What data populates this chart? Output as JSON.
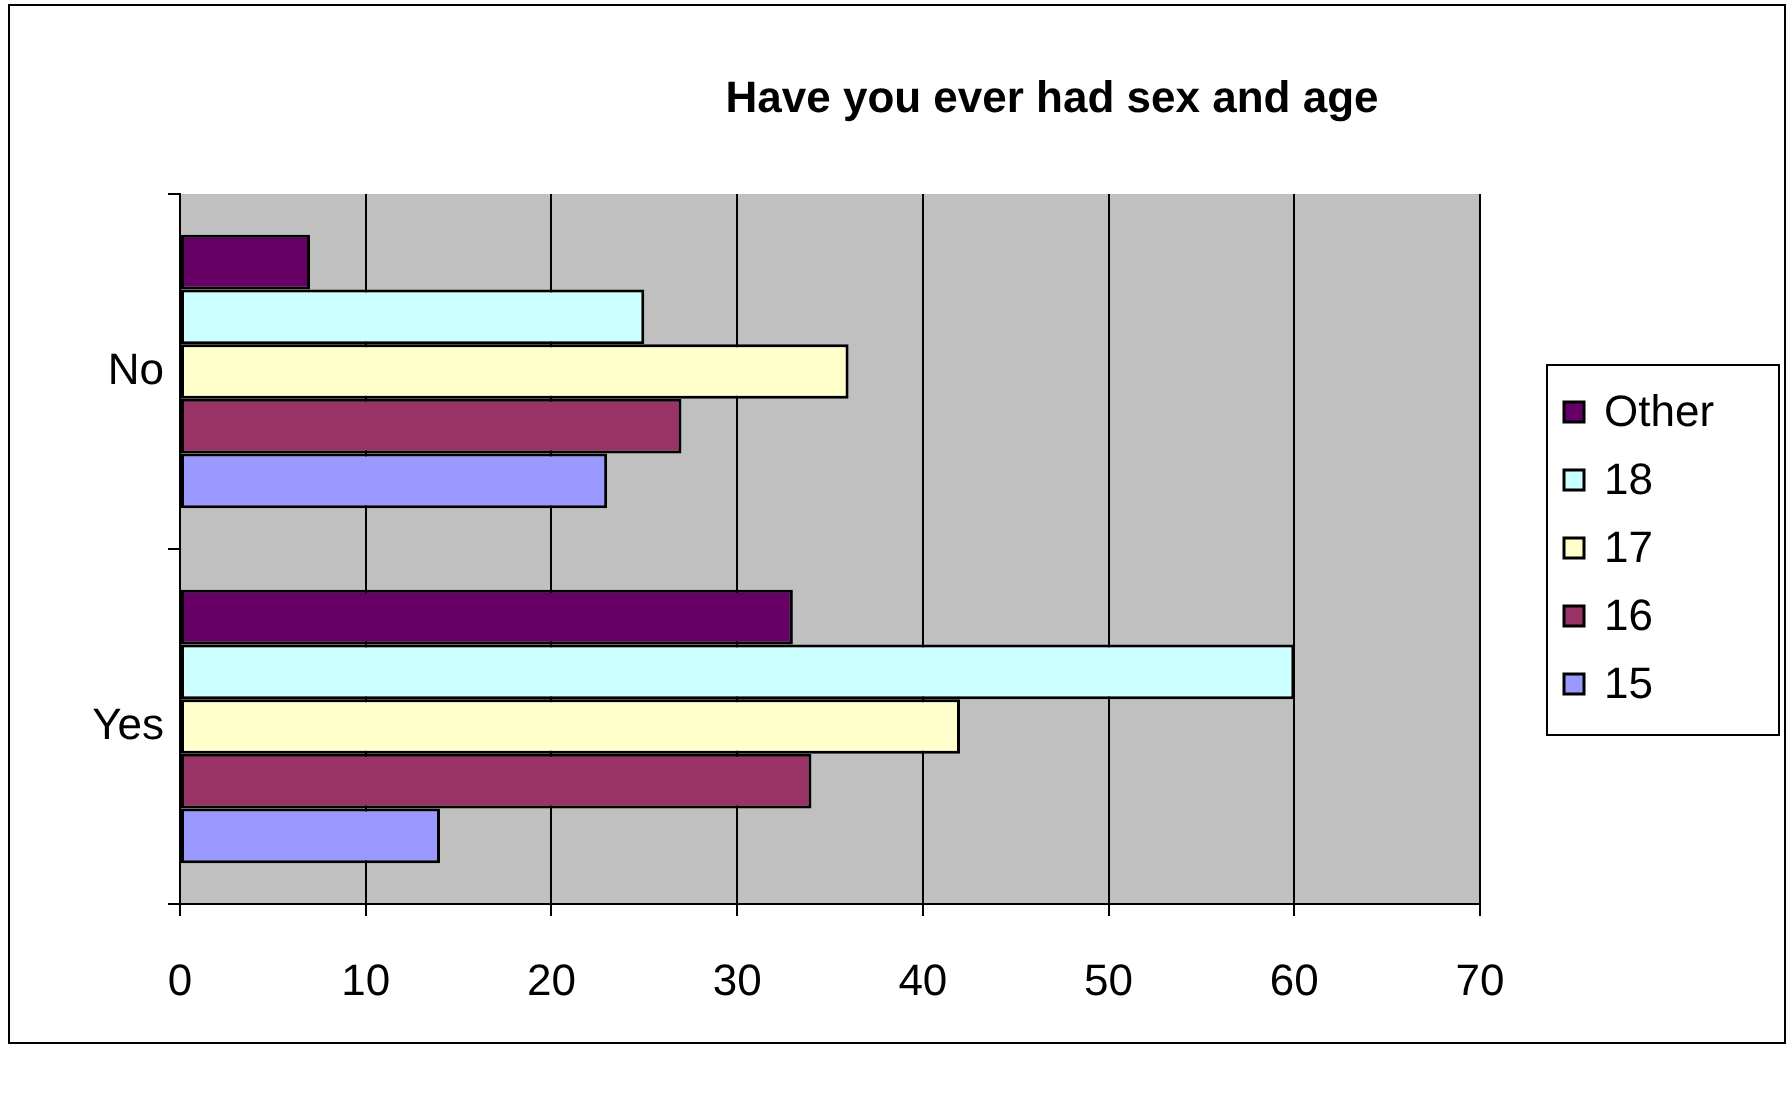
{
  "chart_data": {
    "type": "bar",
    "orientation": "horizontal",
    "title": "Have you ever had sex and age",
    "categories": [
      "No",
      "Yes"
    ],
    "series": [
      {
        "name": "Other",
        "color": "#660066",
        "values": [
          7,
          33
        ]
      },
      {
        "name": "18",
        "color": "#ccffff",
        "values": [
          25,
          60
        ]
      },
      {
        "name": "17",
        "color": "#ffffcc",
        "values": [
          36,
          42
        ]
      },
      {
        "name": "16",
        "color": "#993366",
        "values": [
          27,
          34
        ]
      },
      {
        "name": "15",
        "color": "#9999ff",
        "values": [
          23,
          14
        ]
      }
    ],
    "xlim": [
      0,
      70
    ],
    "xticks": [
      0,
      10,
      20,
      30,
      40,
      50,
      60,
      70
    ],
    "grid": "x",
    "legend": "right"
  }
}
